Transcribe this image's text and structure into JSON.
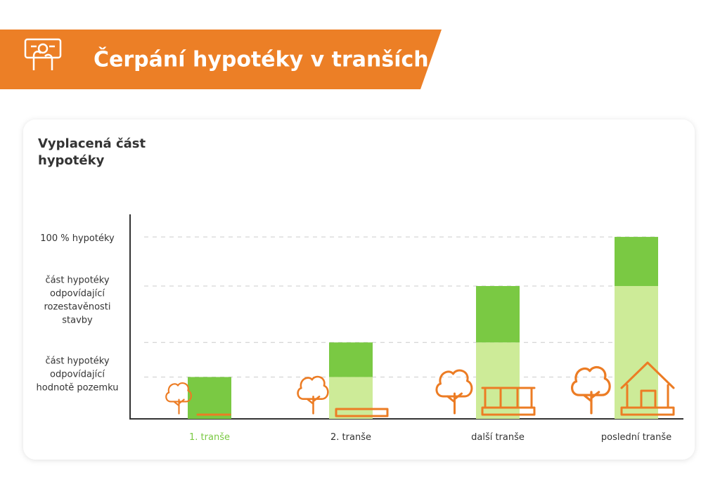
{
  "header": {
    "title": "Čerpání hypotéky v tranších"
  },
  "chart_data": {
    "type": "stacked-bar",
    "y_label": [
      "Vyplacená část",
      "hypotéky"
    ],
    "categories": [
      "1. tranše",
      "2. tranše",
      "další tranše",
      "poslední tranše"
    ],
    "category_colors": [
      "#7ac943",
      "#333333",
      "#333333",
      "#333333"
    ],
    "series": [
      {
        "color": "#cdeb98",
        "values": [
          0,
          23,
          42,
          73
        ]
      },
      {
        "color": "#7ac943",
        "values": [
          23,
          19,
          31,
          27
        ]
      }
    ],
    "ylim": [
      0,
      112
    ],
    "yticks": [
      {
        "value": 23,
        "label": "část hypotéky\nodpovídající\nhodnotě pozemku"
      },
      {
        "value": 42,
        "label": null
      },
      {
        "value": 73,
        "label": "část hypotéky\nodpovídající\nrozestavěnosti\nstavby"
      },
      {
        "value": 100,
        "label": "100 % hypotéky"
      }
    ],
    "grid": true
  }
}
